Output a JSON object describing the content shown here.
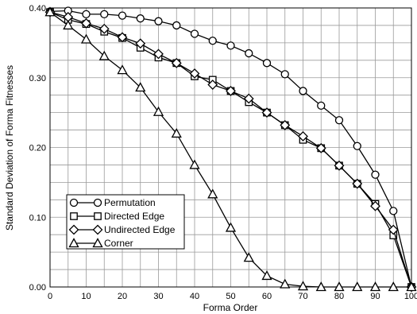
{
  "chart_data": {
    "type": "line",
    "xlabel": "Forma Order",
    "ylabel": "Standard Deviation of Forma Fitnesses",
    "xlim": [
      0,
      100
    ],
    "ylim": [
      0,
      0.4
    ],
    "x_ticks": [
      "0",
      "10",
      "20",
      "30",
      "40",
      "50",
      "60",
      "70",
      "80",
      "90",
      "100"
    ],
    "y_ticks": [
      "0.00",
      "0.10",
      "0.20",
      "0.30",
      "0.40"
    ],
    "x": [
      0,
      5,
      10,
      15,
      20,
      25,
      30,
      35,
      40,
      45,
      50,
      55,
      60,
      65,
      70,
      75,
      80,
      85,
      90,
      95,
      100
    ],
    "grid": true,
    "legend_position": "bottom-left",
    "series": [
      {
        "name": "Permutation",
        "marker": "circle",
        "values": [
          0.395,
          0.396,
          0.391,
          0.391,
          0.389,
          0.385,
          0.381,
          0.375,
          0.363,
          0.353,
          0.346,
          0.335,
          0.321,
          0.305,
          0.281,
          0.26,
          0.239,
          0.202,
          0.161,
          0.109,
          0.0
        ]
      },
      {
        "name": "Directed Edge",
        "marker": "square",
        "values": [
          0.394,
          0.383,
          0.377,
          0.366,
          0.357,
          0.343,
          0.329,
          0.321,
          0.302,
          0.297,
          0.281,
          0.265,
          0.25,
          0.232,
          0.211,
          0.199,
          0.174,
          0.148,
          0.119,
          0.074,
          0.0
        ]
      },
      {
        "name": "Undirected Edge",
        "marker": "diamond",
        "values": [
          0.394,
          0.387,
          0.378,
          0.37,
          0.358,
          0.349,
          0.334,
          0.321,
          0.306,
          0.29,
          0.281,
          0.27,
          0.25,
          0.232,
          0.216,
          0.199,
          0.174,
          0.148,
          0.116,
          0.082,
          0.0
        ]
      },
      {
        "name": "Corner",
        "marker": "triangle",
        "values": [
          0.394,
          0.375,
          0.355,
          0.331,
          0.311,
          0.286,
          0.251,
          0.22,
          0.175,
          0.133,
          0.085,
          0.042,
          0.016,
          0.004,
          0.001,
          0.0,
          0.0,
          0.0,
          0.0,
          0.0,
          0.0
        ]
      }
    ]
  }
}
